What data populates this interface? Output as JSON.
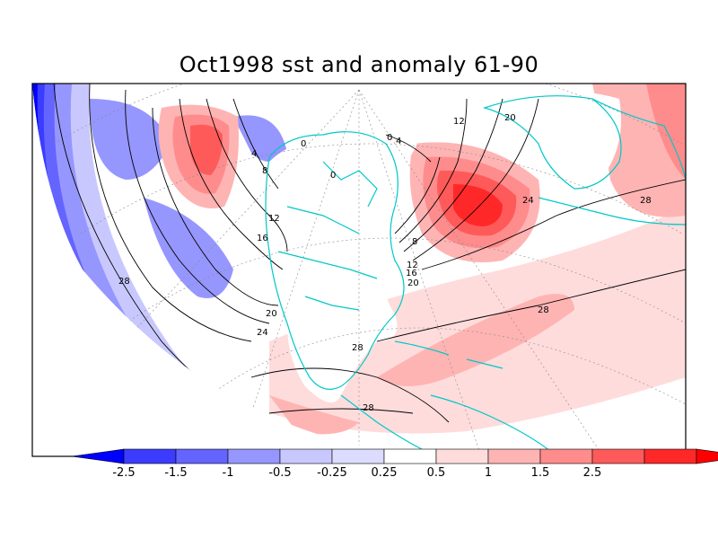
{
  "title": "Oct1998 sst and anomaly 61-90",
  "colorbar": {
    "labels": [
      "-2.5",
      "-1.5",
      "-1",
      "-0.5",
      "-0.25",
      "0.25",
      "0.5",
      "1",
      "1.5",
      "2.5"
    ],
    "colors": [
      "#0000ff",
      "#3c3cff",
      "#6464ff",
      "#9696ff",
      "#c8c8ff",
      "#dcdcff",
      "#ffffff",
      "#ffdcdc",
      "#ffb4b4",
      "#ff8c8c",
      "#ff5a5a",
      "#ff2828",
      "#ff0000"
    ]
  },
  "contour_labels": [
    {
      "text": "28"
    },
    {
      "text": "28"
    },
    {
      "text": "28"
    },
    {
      "text": "28"
    },
    {
      "text": "28"
    },
    {
      "text": "24"
    },
    {
      "text": "24"
    },
    {
      "text": "20"
    },
    {
      "text": "20"
    },
    {
      "text": "16"
    },
    {
      "text": "16"
    },
    {
      "text": "12"
    },
    {
      "text": "12"
    },
    {
      "text": "12"
    },
    {
      "text": "8"
    },
    {
      "text": "8"
    },
    {
      "text": "4"
    },
    {
      "text": "4"
    },
    {
      "text": "0"
    },
    {
      "text": "0"
    },
    {
      "text": "0"
    },
    {
      "text": "20"
    }
  ],
  "colors": {
    "coastline": "#00c8c8",
    "contour": "#000000",
    "frame": "#000000"
  }
}
